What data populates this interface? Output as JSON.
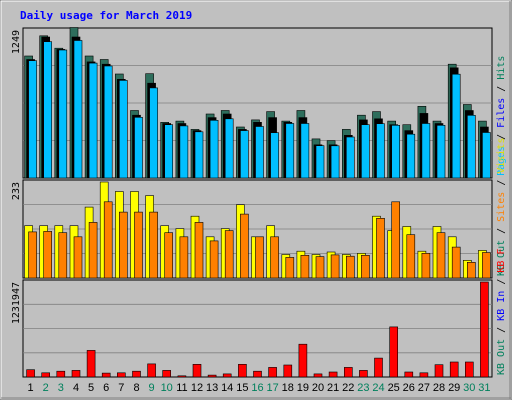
{
  "chart_data": {
    "title": "Daily usage for March 2019",
    "type": "bar",
    "days": [
      "1",
      "2",
      "3",
      "4",
      "5",
      "6",
      "7",
      "8",
      "9",
      "10",
      "11",
      "12",
      "13",
      "14",
      "15",
      "16",
      "17",
      "18",
      "19",
      "20",
      "21",
      "22",
      "23",
      "24",
      "25",
      "26",
      "27",
      "28",
      "29",
      "30",
      "31"
    ],
    "weekend_days": [
      "2",
      "3",
      "9",
      "10",
      "16",
      "17",
      "23",
      "24",
      "30",
      "31"
    ],
    "panels": [
      {
        "id": "hits",
        "max_label": "1249",
        "ymax": 1249,
        "legend": [
          {
            "text": "Hits",
            "color": "#00805c"
          },
          {
            "text": "Files",
            "color": "#0000ff"
          },
          {
            "text": "Pages",
            "color": "#00c0ff"
          }
        ],
        "series": [
          {
            "name": "Hits",
            "color": "#2e6e5c",
            "values": [
              1030,
              1200,
              1095,
              1270,
              1030,
              1000,
              878,
              570,
              880,
              470,
              480,
              410,
              540,
              570,
              430,
              490,
              560,
              480,
              570,
              330,
              315,
              410,
              530,
              560,
              480,
              450,
              605,
              480,
              960,
              620,
              480
            ]
          },
          {
            "name": "Files",
            "color": "#000000",
            "values": [
              1000,
              1190,
              1085,
              1190,
              980,
              960,
              833,
              530,
              800,
              460,
              460,
              400,
              510,
              540,
              410,
              470,
              510,
              470,
              510,
              280,
              280,
              360,
              490,
              500,
              450,
              400,
              545,
              460,
              930,
              570,
              430
            ]
          },
          {
            "name": "Pages",
            "color": "#00bfff",
            "values": [
              990,
              1150,
              1080,
              1160,
              970,
              945,
              824,
              512,
              760,
              450,
              440,
              390,
              487,
              500,
              400,
              435,
              382,
              460,
              460,
              273,
              272,
              346,
              450,
              458,
              445,
              370,
              460,
              445,
              876,
              529,
              384
            ]
          }
        ]
      },
      {
        "id": "visits",
        "max_label": "233",
        "ymax": 233,
        "legend": [
          {
            "text": "Visits",
            "color": "#e0e000"
          },
          {
            "text": "Sites",
            "color": "#ff8000"
          },
          {
            "text": "KB Out",
            "color": "#00805c"
          }
        ],
        "series": [
          {
            "name": "Visits",
            "color": "#ffff00",
            "values": [
              127,
              127,
              127,
              127,
              172,
              233,
              210,
              210,
              200,
              127,
              120,
              150,
              100,
              120,
              178,
              100,
              127,
              57,
              65,
              57,
              63,
              57,
              60,
              150,
              115,
              125,
              65,
              125,
              100,
              43,
              67
            ]
          },
          {
            "name": "Sites",
            "color": "#ff8000",
            "values": [
              112,
              113,
              110,
              100,
              135,
              185,
              160,
              160,
              160,
              110,
              100,
              135,
              90,
              115,
              155,
              100,
              100,
              50,
              55,
              52,
              56,
              53,
              55,
              145,
              185,
              105,
              60,
              110,
              75,
              38,
              62
            ]
          }
        ]
      },
      {
        "id": "kbf",
        "max_label": "1231947",
        "ymax": 1231947,
        "legend": [
          {
            "text": "KB F",
            "color": "#ff0000"
          },
          {
            "text": "KB In",
            "color": "#0000ff"
          },
          {
            "text": "KB Out",
            "color": "#00805c"
          }
        ],
        "series": [
          {
            "name": "KB F",
            "color": "#ff0000",
            "values": [
              95000,
              55000,
              75000,
              85000,
              345000,
              50000,
              55000,
              75000,
              170000,
              85000,
              15000,
              165000,
              25000,
              40000,
              165000,
              75000,
              125000,
              155000,
              425000,
              40000,
              65000,
              125000,
              85000,
              245000,
              650000,
              65000,
              55000,
              160000,
              195000,
              195000,
              1231947
            ]
          }
        ]
      }
    ]
  }
}
